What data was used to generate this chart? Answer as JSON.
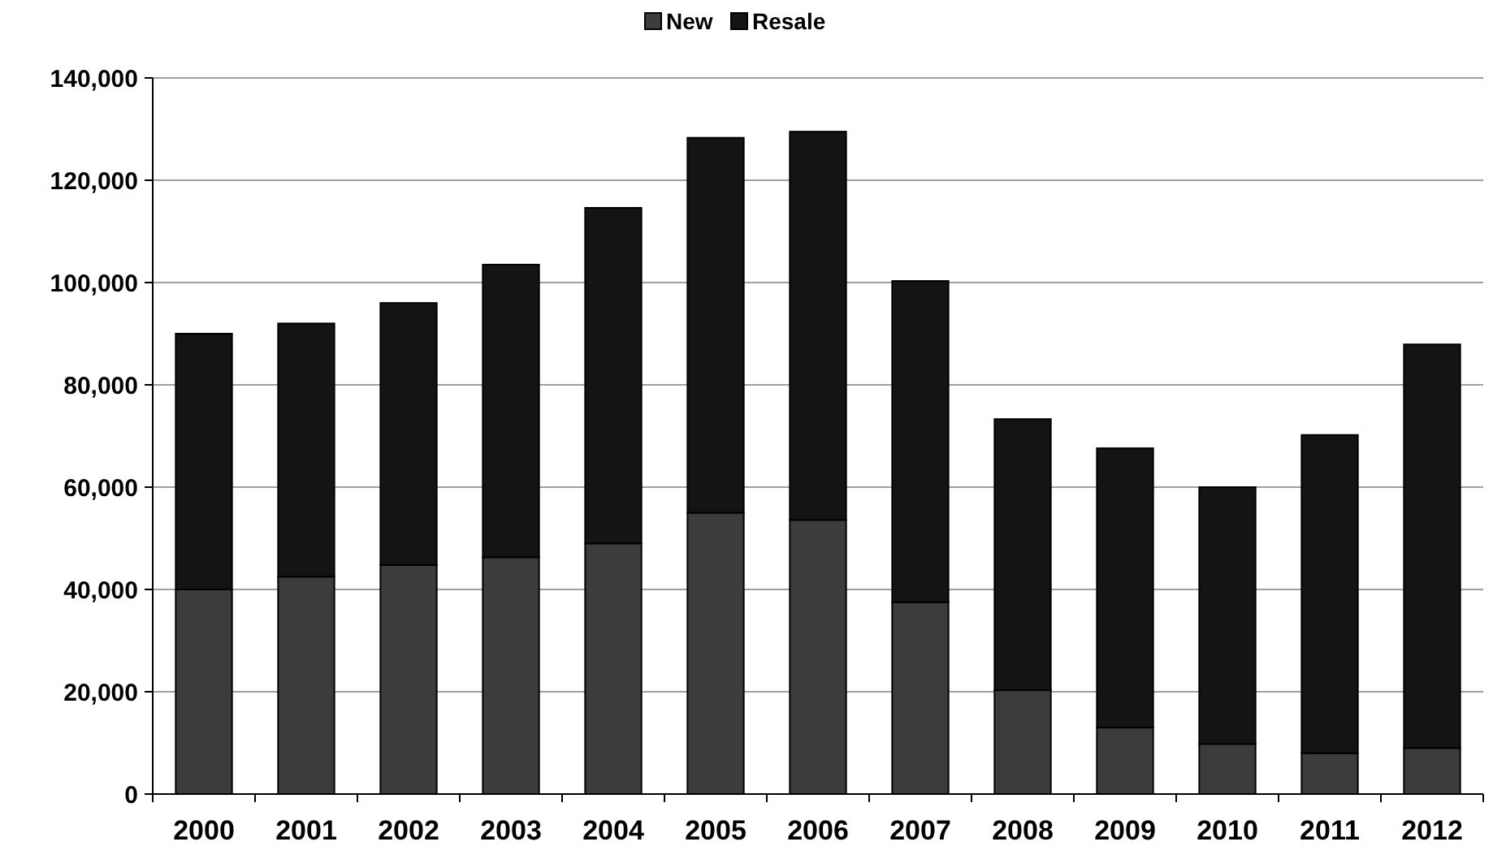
{
  "chart_data": {
    "type": "bar",
    "stacked": true,
    "categories": [
      "2000",
      "2001",
      "2002",
      "2003",
      "2004",
      "2005",
      "2006",
      "2007",
      "2008",
      "2009",
      "2010",
      "2011",
      "2012"
    ],
    "series": [
      {
        "name": "New",
        "color": "#3c3c3c",
        "values": [
          40000,
          42500,
          44800,
          46300,
          49000,
          55000,
          53600,
          37500,
          20300,
          13000,
          9800,
          8000,
          9000
        ]
      },
      {
        "name": "Resale",
        "color": "#141414",
        "values": [
          50000,
          49500,
          51200,
          57200,
          65600,
          73300,
          75900,
          62800,
          53000,
          54600,
          50200,
          62200,
          78900
        ]
      }
    ],
    "ylim": [
      0,
      140000
    ],
    "yticks": [
      {
        "value": 0,
        "label": "0"
      },
      {
        "value": 20000,
        "label": "20,000"
      },
      {
        "value": 40000,
        "label": "40,000"
      },
      {
        "value": 60000,
        "label": "60,000"
      },
      {
        "value": 80000,
        "label": "80,000"
      },
      {
        "value": 100000,
        "label": "100,000"
      },
      {
        "value": 120000,
        "label": "120,000"
      },
      {
        "value": 140000,
        "label": "140,000"
      }
    ],
    "grid": "y",
    "legend": "top"
  }
}
